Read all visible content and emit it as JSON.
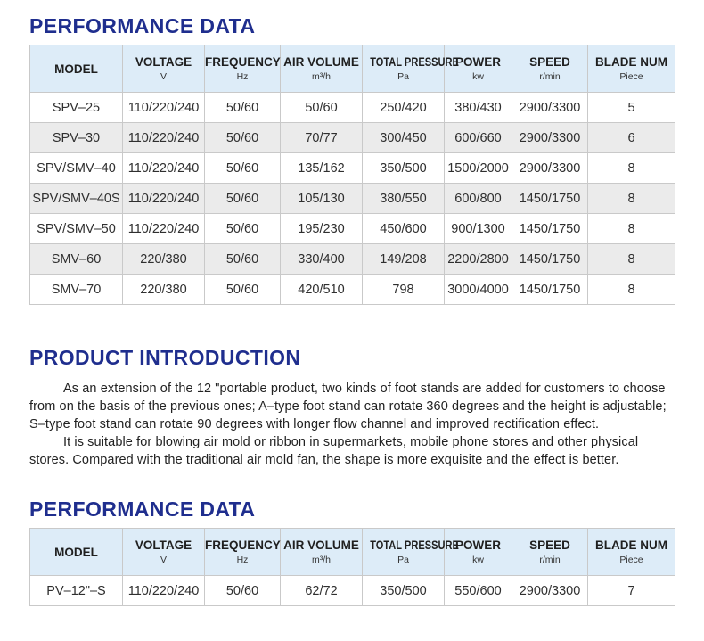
{
  "sections": {
    "performance1": {
      "title": "PERFORMANCE DATA"
    },
    "introduction": {
      "title": "PRODUCT INTRODUCTION",
      "paragraphs": [
        "As an extension of the 12 \"portable product, two kinds of foot stands are added for customers to choose from on the basis of the previous ones; A–type foot stand can rotate 360 degrees and the height is adjustable; S–type foot stand can rotate 90 degrees with longer flow channel and improved rectification effect.",
        "It is suitable for blowing air mold or ribbon in supermarkets, mobile phone stores and other physical stores. Compared with the traditional air mold fan, the shape is more exquisite and the effect is better."
      ]
    },
    "performance2": {
      "title": "PERFORMANCE DATA"
    }
  },
  "columns": [
    {
      "label": "MODEL",
      "unit": ""
    },
    {
      "label": "VOLTAGE",
      "unit": "V"
    },
    {
      "label": "FREQUENCY",
      "unit": "Hz"
    },
    {
      "label": "AIR VOLUME",
      "unit": "m³/h"
    },
    {
      "label": "TOTAL PRESSURE",
      "unit": "Pa"
    },
    {
      "label": "POWER",
      "unit": "kw"
    },
    {
      "label": "SPEED",
      "unit": "r/min"
    },
    {
      "label": "BLADE NUM",
      "unit": "Piece"
    }
  ],
  "tables": [
    {
      "name": "performance-table-1",
      "rows": [
        [
          "SPV–25",
          "110/220/240",
          "50/60",
          "50/60",
          "250/420",
          "380/430",
          "2900/3300",
          "5"
        ],
        [
          "SPV–30",
          "110/220/240",
          "50/60",
          "70/77",
          "300/450",
          "600/660",
          "2900/3300",
          "6"
        ],
        [
          "SPV/SMV–40",
          "110/220/240",
          "50/60",
          "135/162",
          "350/500",
          "1500/2000",
          "2900/3300",
          "8"
        ],
        [
          "SPV/SMV–40S",
          "110/220/240",
          "50/60",
          "105/130",
          "380/550",
          "600/800",
          "1450/1750",
          "8"
        ],
        [
          "SPV/SMV–50",
          "110/220/240",
          "50/60",
          "195/230",
          "450/600",
          "900/1300",
          "1450/1750",
          "8"
        ],
        [
          "SMV–60",
          "220/380",
          "50/60",
          "330/400",
          "149/208",
          "2200/2800",
          "1450/1750",
          "8"
        ],
        [
          "SMV–70",
          "220/380",
          "50/60",
          "420/510",
          "798",
          "3000/4000",
          "1450/1750",
          "8"
        ]
      ]
    },
    {
      "name": "performance-table-2",
      "rows": [
        [
          "PV–12\"–S",
          "110/220/240",
          "50/60",
          "62/72",
          "350/500",
          "550/600",
          "2900/3300",
          "7"
        ]
      ]
    }
  ],
  "colors": {
    "heading": "#1f2e8e",
    "table_header_bg": "#ddecf8",
    "row_alt_bg": "#ebebeb",
    "border": "#c9c9c9",
    "body_text": "#222222"
  }
}
